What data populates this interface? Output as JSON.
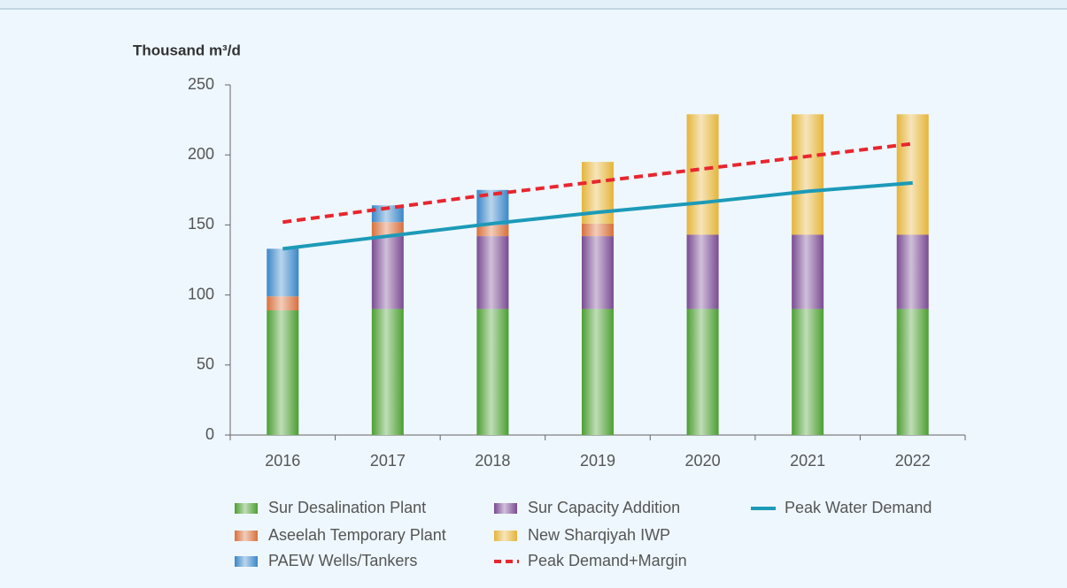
{
  "chart_data": {
    "type": "bar",
    "y_label": "Thousand m³/d",
    "categories": [
      "2016",
      "2017",
      "2018",
      "2019",
      "2020",
      "2021",
      "2022"
    ],
    "ylim": [
      0,
      250
    ],
    "yticks": [
      0,
      50,
      100,
      150,
      200,
      250
    ],
    "series": [
      {
        "name": "Sur Desalination Plant",
        "type": "bar",
        "color": "#4c9f32",
        "values": [
          89,
          90,
          90,
          90,
          90,
          90,
          90
        ]
      },
      {
        "name": "Sur Capacity Addition",
        "type": "bar",
        "color": "#7a4b92",
        "values": [
          null,
          52,
          52,
          52,
          53,
          53,
          53
        ]
      },
      {
        "name": "Aseelah Temporary Plant",
        "type": "bar",
        "color": "#d8703c",
        "values": [
          10,
          10,
          8,
          9,
          null,
          null,
          null
        ]
      },
      {
        "name": "PAEW Wells/Tankers",
        "type": "bar",
        "color": "#3a86c8",
        "values": [
          34,
          12,
          25,
          null,
          null,
          null,
          null
        ]
      },
      {
        "name": "New Sharqiyah IWP",
        "type": "bar",
        "color": "#e5b43a",
        "values": [
          null,
          null,
          null,
          44,
          86,
          86,
          86
        ]
      },
      {
        "name": "Peak Demand+Margin",
        "type": "line",
        "dashed": true,
        "color": "#e8262f",
        "values": [
          152,
          162,
          172,
          181,
          190,
          199,
          208
        ]
      },
      {
        "name": "Peak Water Demand",
        "type": "line",
        "dashed": false,
        "color": "#1c9ab8",
        "values": [
          133,
          142,
          151,
          159,
          166,
          174,
          180
        ]
      }
    ]
  }
}
